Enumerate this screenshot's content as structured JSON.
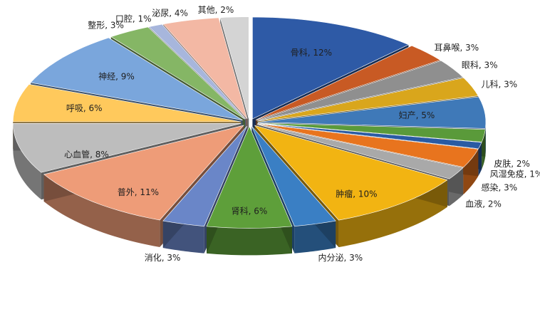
{
  "chart_data": {
    "type": "pie",
    "style": "3d-exploded",
    "title": "",
    "legend": "none",
    "label_format": "{name}, {value}%",
    "slices": [
      {
        "name": "骨科",
        "value": 12,
        "color": "#2e5aa6"
      },
      {
        "name": "耳鼻喉",
        "value": 3,
        "color": "#c85a24"
      },
      {
        "name": "眼科",
        "value": 3,
        "color": "#8f8f8f"
      },
      {
        "name": "儿科",
        "value": 3,
        "color": "#d9a61c"
      },
      {
        "name": "妇产",
        "value": 5,
        "color": "#3f79b8"
      },
      {
        "name": "皮肤",
        "value": 2,
        "color": "#5a9a3a"
      },
      {
        "name": "风湿免疫",
        "value": 1,
        "color": "#2a5ba3"
      },
      {
        "name": "感染",
        "value": 3,
        "color": "#e8741e"
      },
      {
        "name": "血液",
        "value": 2,
        "color": "#a9a9a9"
      },
      {
        "name": "肿瘤",
        "value": 10,
        "color": "#f2b412"
      },
      {
        "name": "内分泌",
        "value": 3,
        "color": "#3a7fc4"
      },
      {
        "name": "肾科",
        "value": 6,
        "color": "#5e9f3a"
      },
      {
        "name": "消化",
        "value": 3,
        "color": "#6a86c8"
      },
      {
        "name": "普外",
        "value": 11,
        "color": "#ee9c78"
      },
      {
        "name": "心血管",
        "value": 8,
        "color": "#bdbdbd"
      },
      {
        "name": "呼吸",
        "value": 6,
        "color": "#ffc95c"
      },
      {
        "name": "神经",
        "value": 9,
        "color": "#7aa6dc"
      },
      {
        "name": "整形",
        "value": 3,
        "color": "#85b665"
      },
      {
        "name": "口腔",
        "value": 1,
        "color": "#a7b6dc"
      },
      {
        "name": "泌尿",
        "value": 4,
        "color": "#f3b8a4"
      },
      {
        "name": "其他",
        "value": 2,
        "color": "#d4d4d4"
      }
    ]
  }
}
